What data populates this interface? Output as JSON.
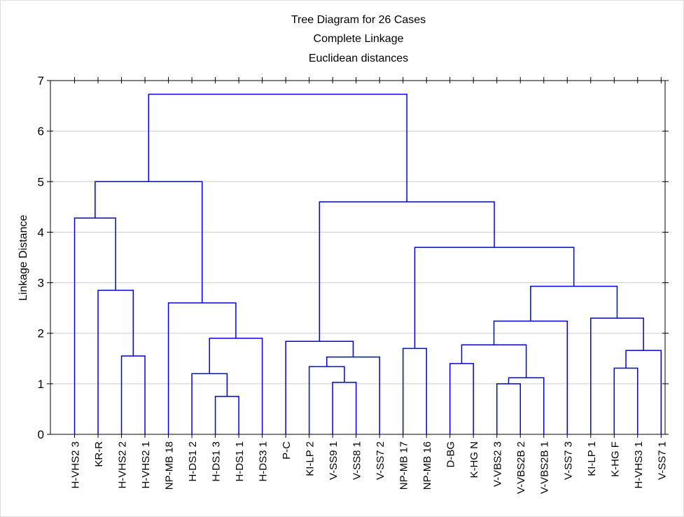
{
  "chart_data": {
    "type": "dendrogram",
    "title": "Tree Diagram for 26 Cases",
    "subtitle": [
      "Complete Linkage",
      "Euclidean distances"
    ],
    "ylabel": "Linkage Distance",
    "ylim": [
      0,
      7
    ],
    "yticks": [
      0,
      1,
      2,
      3,
      4,
      5,
      6,
      7
    ],
    "grid": true,
    "color": "#0000e0",
    "leaves": [
      "H-VHS2 3",
      "KR-R",
      "H-VHS2 2",
      "H-VHS2 1",
      "NP-MB 18",
      "H-DS1 2",
      "H-DS1 3",
      "H-DS1 1",
      "H-DS3 1",
      "P-C",
      "KI-LP 2",
      "V-SS9 1",
      "V-SS8 1",
      "V-SS7 2",
      "NP-MB 17",
      "NP-MB 16",
      "D-BG",
      "K-HG N",
      "V-VBS2 3",
      "V-VBS2B 2",
      "V-VBS2B 1",
      "V-SS7 3",
      "KI-LP 1",
      "K-HG F",
      "H-VHS3 1",
      "V-SS7 1"
    ],
    "merges": [
      {
        "children": [
          2,
          3
        ],
        "height": 1.55
      },
      {
        "children": [
          1,
          26
        ],
        "height": 2.85
      },
      {
        "children": [
          0,
          27
        ],
        "height": 4.28
      },
      {
        "children": [
          6,
          7
        ],
        "height": 0.75
      },
      {
        "children": [
          5,
          29
        ],
        "height": 1.2
      },
      {
        "children": [
          30,
          8
        ],
        "height": 1.9
      },
      {
        "children": [
          4,
          31
        ],
        "height": 2.6
      },
      {
        "children": [
          28,
          32
        ],
        "height": 5.0
      },
      {
        "children": [
          11,
          12
        ],
        "height": 1.03
      },
      {
        "children": [
          10,
          34
        ],
        "height": 1.34
      },
      {
        "children": [
          35,
          13
        ],
        "height": 1.53
      },
      {
        "children": [
          9,
          36
        ],
        "height": 1.84
      },
      {
        "children": [
          14,
          15
        ],
        "height": 1.7
      },
      {
        "children": [
          16,
          17
        ],
        "height": 1.4
      },
      {
        "children": [
          18,
          19
        ],
        "height": 1.0
      },
      {
        "children": [
          40,
          20
        ],
        "height": 1.12
      },
      {
        "children": [
          39,
          41
        ],
        "height": 1.77
      },
      {
        "children": [
          42,
          21
        ],
        "height": 2.24
      },
      {
        "children": [
          23,
          24
        ],
        "height": 1.31
      },
      {
        "children": [
          44,
          25
        ],
        "height": 1.66
      },
      {
        "children": [
          22,
          45
        ],
        "height": 2.3
      },
      {
        "children": [
          43,
          46
        ],
        "height": 2.93
      },
      {
        "children": [
          38,
          47
        ],
        "height": 3.7
      },
      {
        "children": [
          37,
          48
        ],
        "height": 4.6
      },
      {
        "children": [
          33,
          49
        ],
        "height": 6.73
      }
    ]
  }
}
